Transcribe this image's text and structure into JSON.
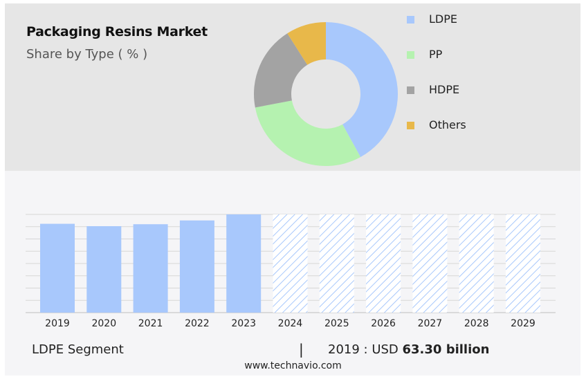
{
  "chart_data": [
    {
      "type": "pie",
      "title": "Packaging Resins Market",
      "subtitle": "Share by Type ( % )",
      "donut": true,
      "slices": [
        {
          "name": "LDPE",
          "value": 42,
          "color": "#a8c8fc"
        },
        {
          "name": "PP",
          "value": 30,
          "color": "#b5f2b0"
        },
        {
          "name": "HDPE",
          "value": 19,
          "color": "#a3a3a3"
        },
        {
          "name": "Others",
          "value": 9,
          "color": "#e8b84a"
        }
      ],
      "legend_position": "right"
    },
    {
      "type": "bar",
      "categories": [
        "2019",
        "2020",
        "2021",
        "2022",
        "2023",
        "2024",
        "2025",
        "2026",
        "2027",
        "2028",
        "2029"
      ],
      "values": [
        63.3,
        61.6,
        63.0,
        65.7,
        70.0,
        null,
        null,
        null,
        null,
        null,
        null
      ],
      "forecast_categories": [
        "2024",
        "2025",
        "2026",
        "2027",
        "2028",
        "2029"
      ],
      "ylim": [
        0,
        70
      ],
      "grid": true,
      "bar_color": "#a8c8fc"
    }
  ],
  "footer": {
    "segment_label": "LDPE Segment",
    "separator": "|",
    "year_text": "2019 : USD ",
    "value_text": "63.30 billion"
  },
  "watermark": "www.technavio.com"
}
